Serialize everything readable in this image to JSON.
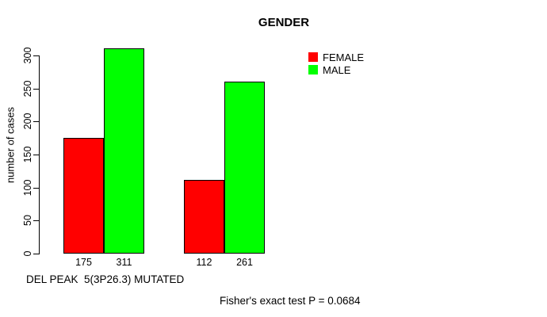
{
  "chart_data": {
    "type": "bar",
    "title": "GENDER",
    "ylabel": "number of cases",
    "xlabel": "DEL PEAK  5(3P26.3) MUTATED",
    "annotation": "Fisher's exact test P = 0.0684",
    "ylim": [
      0,
      300
    ],
    "yticks": [
      0,
      50,
      100,
      150,
      200,
      250,
      300
    ],
    "grid": false,
    "legend_position": "top-right-inside",
    "series": [
      {
        "name": "FEMALE",
        "color": "#ff0000",
        "values": [
          175,
          112
        ]
      },
      {
        "name": "MALE",
        "color": "#00ff00",
        "values": [
          311,
          261
        ]
      }
    ],
    "bar_value_labels": [
      [
        175,
        112
      ],
      [
        311,
        261
      ]
    ],
    "background_color": "#ffffff",
    "axis_color": "#000000"
  }
}
